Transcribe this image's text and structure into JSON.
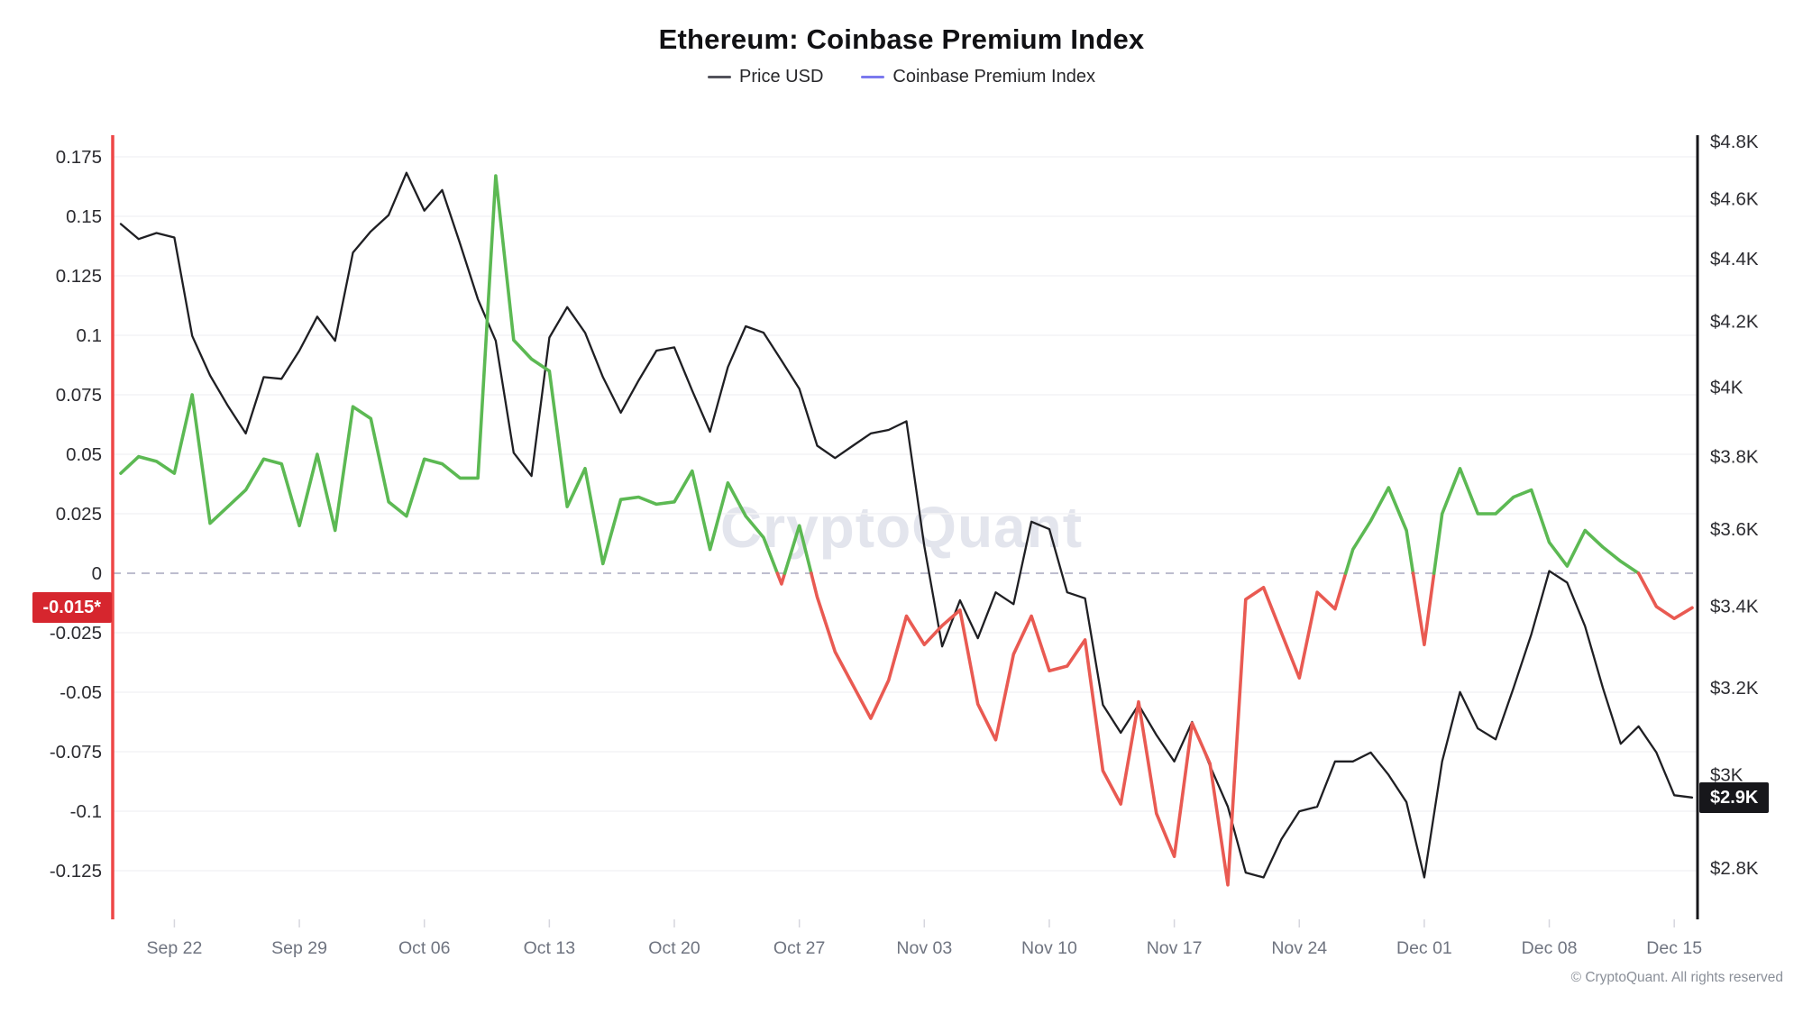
{
  "title": "Ethereum: Coinbase Premium Index",
  "legend": {
    "items": [
      {
        "label": "Price USD",
        "swatch_color": "#52525b"
      },
      {
        "label": "Coinbase Premium Index",
        "swatch_color": "#7b79ee"
      }
    ]
  },
  "watermark": "CryptoQuant",
  "copyright": "© CryptoQuant. All rights reserved",
  "badges": {
    "premium_current": {
      "text": "-0.015*",
      "color": "#d6262e"
    },
    "price_current": {
      "text": "$2.9K",
      "color": "#17171b"
    }
  },
  "chart_data": {
    "type": "line",
    "title": "Ethereum: Coinbase Premium Index",
    "x_tick_labels": [
      "Sep 22",
      "Sep 29",
      "Oct 06",
      "Oct 13",
      "Oct 20",
      "Oct 27",
      "Nov 03",
      "Nov 10",
      "Nov 17",
      "Nov 24",
      "Dec 01",
      "Dec 08",
      "Dec 15"
    ],
    "left_axis": {
      "name": "Coinbase Premium Index",
      "scale": "linear",
      "range": [
        -0.125,
        0.175
      ],
      "zero_line_dashed": true,
      "ticks": [
        {
          "value": 0.175,
          "label": "0.175"
        },
        {
          "value": 0.15,
          "label": "0.15"
        },
        {
          "value": 0.125,
          "label": "0.125"
        },
        {
          "value": 0.1,
          "label": "0.1"
        },
        {
          "value": 0.075,
          "label": "0.075"
        },
        {
          "value": 0.05,
          "label": "0.05"
        },
        {
          "value": 0.025,
          "label": "0.025"
        },
        {
          "value": 0,
          "label": "0"
        },
        {
          "value": -0.025,
          "label": "-0.025"
        },
        {
          "value": -0.05,
          "label": "-0.05"
        },
        {
          "value": -0.075,
          "label": "-0.075"
        },
        {
          "value": -0.1,
          "label": "-0.1"
        },
        {
          "value": -0.125,
          "label": "-0.125"
        }
      ]
    },
    "right_axis": {
      "name": "Price USD",
      "scale": "log",
      "ticks": [
        {
          "value": 4800,
          "label": "$4.8K"
        },
        {
          "value": 4600,
          "label": "$4.6K"
        },
        {
          "value": 4400,
          "label": "$4.4K"
        },
        {
          "value": 4200,
          "label": "$4.2K"
        },
        {
          "value": 4000,
          "label": "$4K"
        },
        {
          "value": 3800,
          "label": "$3.8K"
        },
        {
          "value": 3600,
          "label": "$3.6K"
        },
        {
          "value": 3400,
          "label": "$3.4K"
        },
        {
          "value": 3200,
          "label": "$3.2K"
        },
        {
          "value": 3000,
          "label": "$3K"
        },
        {
          "value": 2800,
          "label": "$2.8K"
        }
      ]
    },
    "dates": [
      "Sep 19",
      "Sep 20",
      "Sep 21",
      "Sep 22",
      "Sep 23",
      "Sep 24",
      "Sep 25",
      "Sep 26",
      "Sep 27",
      "Sep 28",
      "Sep 29",
      "Sep 30",
      "Oct 01",
      "Oct 02",
      "Oct 03",
      "Oct 04",
      "Oct 05",
      "Oct 06",
      "Oct 07",
      "Oct 08",
      "Oct 09",
      "Oct 10",
      "Oct 11",
      "Oct 12",
      "Oct 13",
      "Oct 14",
      "Oct 15",
      "Oct 16",
      "Oct 17",
      "Oct 18",
      "Oct 19",
      "Oct 20",
      "Oct 21",
      "Oct 22",
      "Oct 23",
      "Oct 24",
      "Oct 25",
      "Oct 26",
      "Oct 27",
      "Oct 28",
      "Oct 29",
      "Oct 30",
      "Oct 31",
      "Nov 01",
      "Nov 02",
      "Nov 03",
      "Nov 04",
      "Nov 05",
      "Nov 06",
      "Nov 07",
      "Nov 08",
      "Nov 09",
      "Nov 10",
      "Nov 11",
      "Nov 12",
      "Nov 13",
      "Nov 14",
      "Nov 15",
      "Nov 16",
      "Nov 17",
      "Nov 18",
      "Nov 19",
      "Nov 20",
      "Nov 21",
      "Nov 22",
      "Nov 23",
      "Nov 24",
      "Nov 25",
      "Nov 26",
      "Nov 27",
      "Nov 28",
      "Nov 29",
      "Nov 30",
      "Dec 01",
      "Dec 02",
      "Dec 03",
      "Dec 04",
      "Dec 05",
      "Dec 06",
      "Dec 07",
      "Dec 08",
      "Dec 09",
      "Dec 10",
      "Dec 11",
      "Dec 12",
      "Dec 13",
      "Dec 14",
      "Dec 15",
      "Dec 16"
    ],
    "series": [
      {
        "name": "Price USD",
        "axis": "right",
        "color": "#1f1f23",
        "values": [
          4515,
          4465,
          4485,
          4470,
          4155,
          4035,
          3945,
          3865,
          4030,
          4025,
          4110,
          4215,
          4140,
          4420,
          4490,
          4545,
          4690,
          4560,
          4630,
          4450,
          4270,
          4140,
          3810,
          3745,
          4150,
          4245,
          4165,
          4030,
          3925,
          4020,
          4110,
          4120,
          3990,
          3870,
          4060,
          4185,
          4165,
          4080,
          3995,
          3830,
          3795,
          3830,
          3865,
          3875,
          3900,
          3555,
          3300,
          3415,
          3320,
          3435,
          3405,
          3620,
          3600,
          3435,
          3420,
          3160,
          3095,
          3160,
          3090,
          3030,
          3120,
          3020,
          2930,
          2790,
          2780,
          2860,
          2920,
          2930,
          3030,
          3030,
          3050,
          3000,
          2940,
          2780,
          3030,
          3190,
          3105,
          3080,
          3200,
          3330,
          3490,
          3460,
          3350,
          3200,
          3070,
          3110,
          3050,
          2955,
          2950
        ]
      },
      {
        "name": "Coinbase Premium Index",
        "axis": "left",
        "color_positive": "#5cb953",
        "color_negative": "#e95a52",
        "values": [
          0.042,
          0.049,
          0.047,
          0.042,
          0.075,
          0.021,
          0.028,
          0.035,
          0.048,
          0.046,
          0.02,
          0.05,
          0.018,
          0.07,
          0.065,
          0.03,
          0.024,
          0.048,
          0.046,
          0.04,
          0.04,
          0.167,
          0.098,
          0.09,
          0.085,
          0.028,
          0.044,
          0.004,
          0.031,
          0.032,
          0.029,
          0.03,
          0.043,
          0.01,
          0.038,
          0.024,
          0.015,
          -0.0045,
          0.02,
          -0.01,
          -0.033,
          -0.047,
          -0.061,
          -0.045,
          -0.018,
          -0.03,
          -0.022,
          -0.0155,
          -0.055,
          -0.07,
          -0.034,
          -0.018,
          -0.041,
          -0.039,
          -0.028,
          -0.083,
          -0.097,
          -0.054,
          -0.101,
          -0.119,
          -0.063,
          -0.08,
          -0.131,
          -0.011,
          -0.006,
          -0.025,
          -0.044,
          -0.008,
          -0.015,
          0.01,
          0.022,
          0.036,
          0.018,
          -0.03,
          0.025,
          0.044,
          0.025,
          0.025,
          0.032,
          0.035,
          0.013,
          0.003,
          0.018,
          0.011,
          0.005,
          0.0,
          -0.014,
          -0.019,
          -0.0145
        ]
      }
    ],
    "last_values": {
      "premium": "-0.015*",
      "price_usd": "$2.9K"
    },
    "grid": "horizontal-only",
    "legend_position": "top-center"
  },
  "style": {
    "left_axis_line_color": "#ee4747",
    "right_axis_line_color": "#16161a",
    "grid_color": "#f4f3f5",
    "zero_dash_color": "#b4b4c8",
    "tick_mark_color": "#d6d6de",
    "axis_label_color": "#2b2b30",
    "x_label_color": "#6f7480"
  }
}
